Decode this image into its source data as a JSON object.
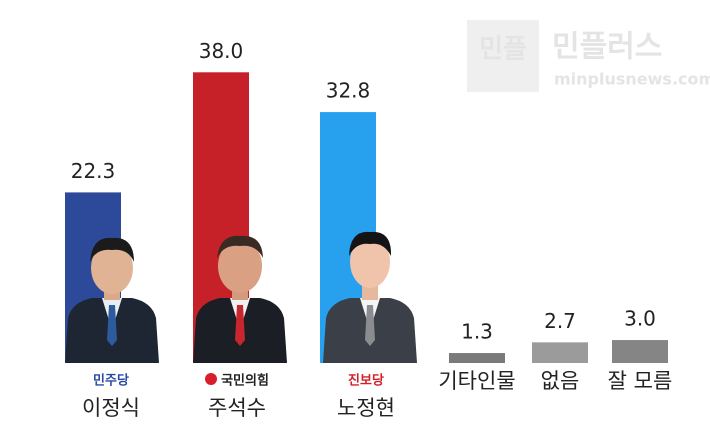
{
  "chart_data": {
    "type": "bar",
    "categories": [
      "이정식",
      "주석수",
      "노정현",
      "기타인물",
      "없음",
      "잘 모름"
    ],
    "parties": [
      "민주당",
      "국민의힘",
      "진보당",
      null,
      null,
      null
    ],
    "values": [
      22.3,
      38.0,
      32.8,
      1.3,
      2.7,
      3.0
    ],
    "value_labels": [
      "22.3",
      "38.0",
      "32.8",
      "1.3",
      "2.7",
      "3.0"
    ],
    "colors": [
      "#2d4a9a",
      "#c62129",
      "#27a0ee",
      "#7a7a7a",
      "#9b9b9b",
      "#858585"
    ],
    "ylim": [
      0,
      40
    ]
  },
  "watermark": {
    "logo": "민플",
    "name": "민플러스",
    "url": "minplusnews.com"
  }
}
